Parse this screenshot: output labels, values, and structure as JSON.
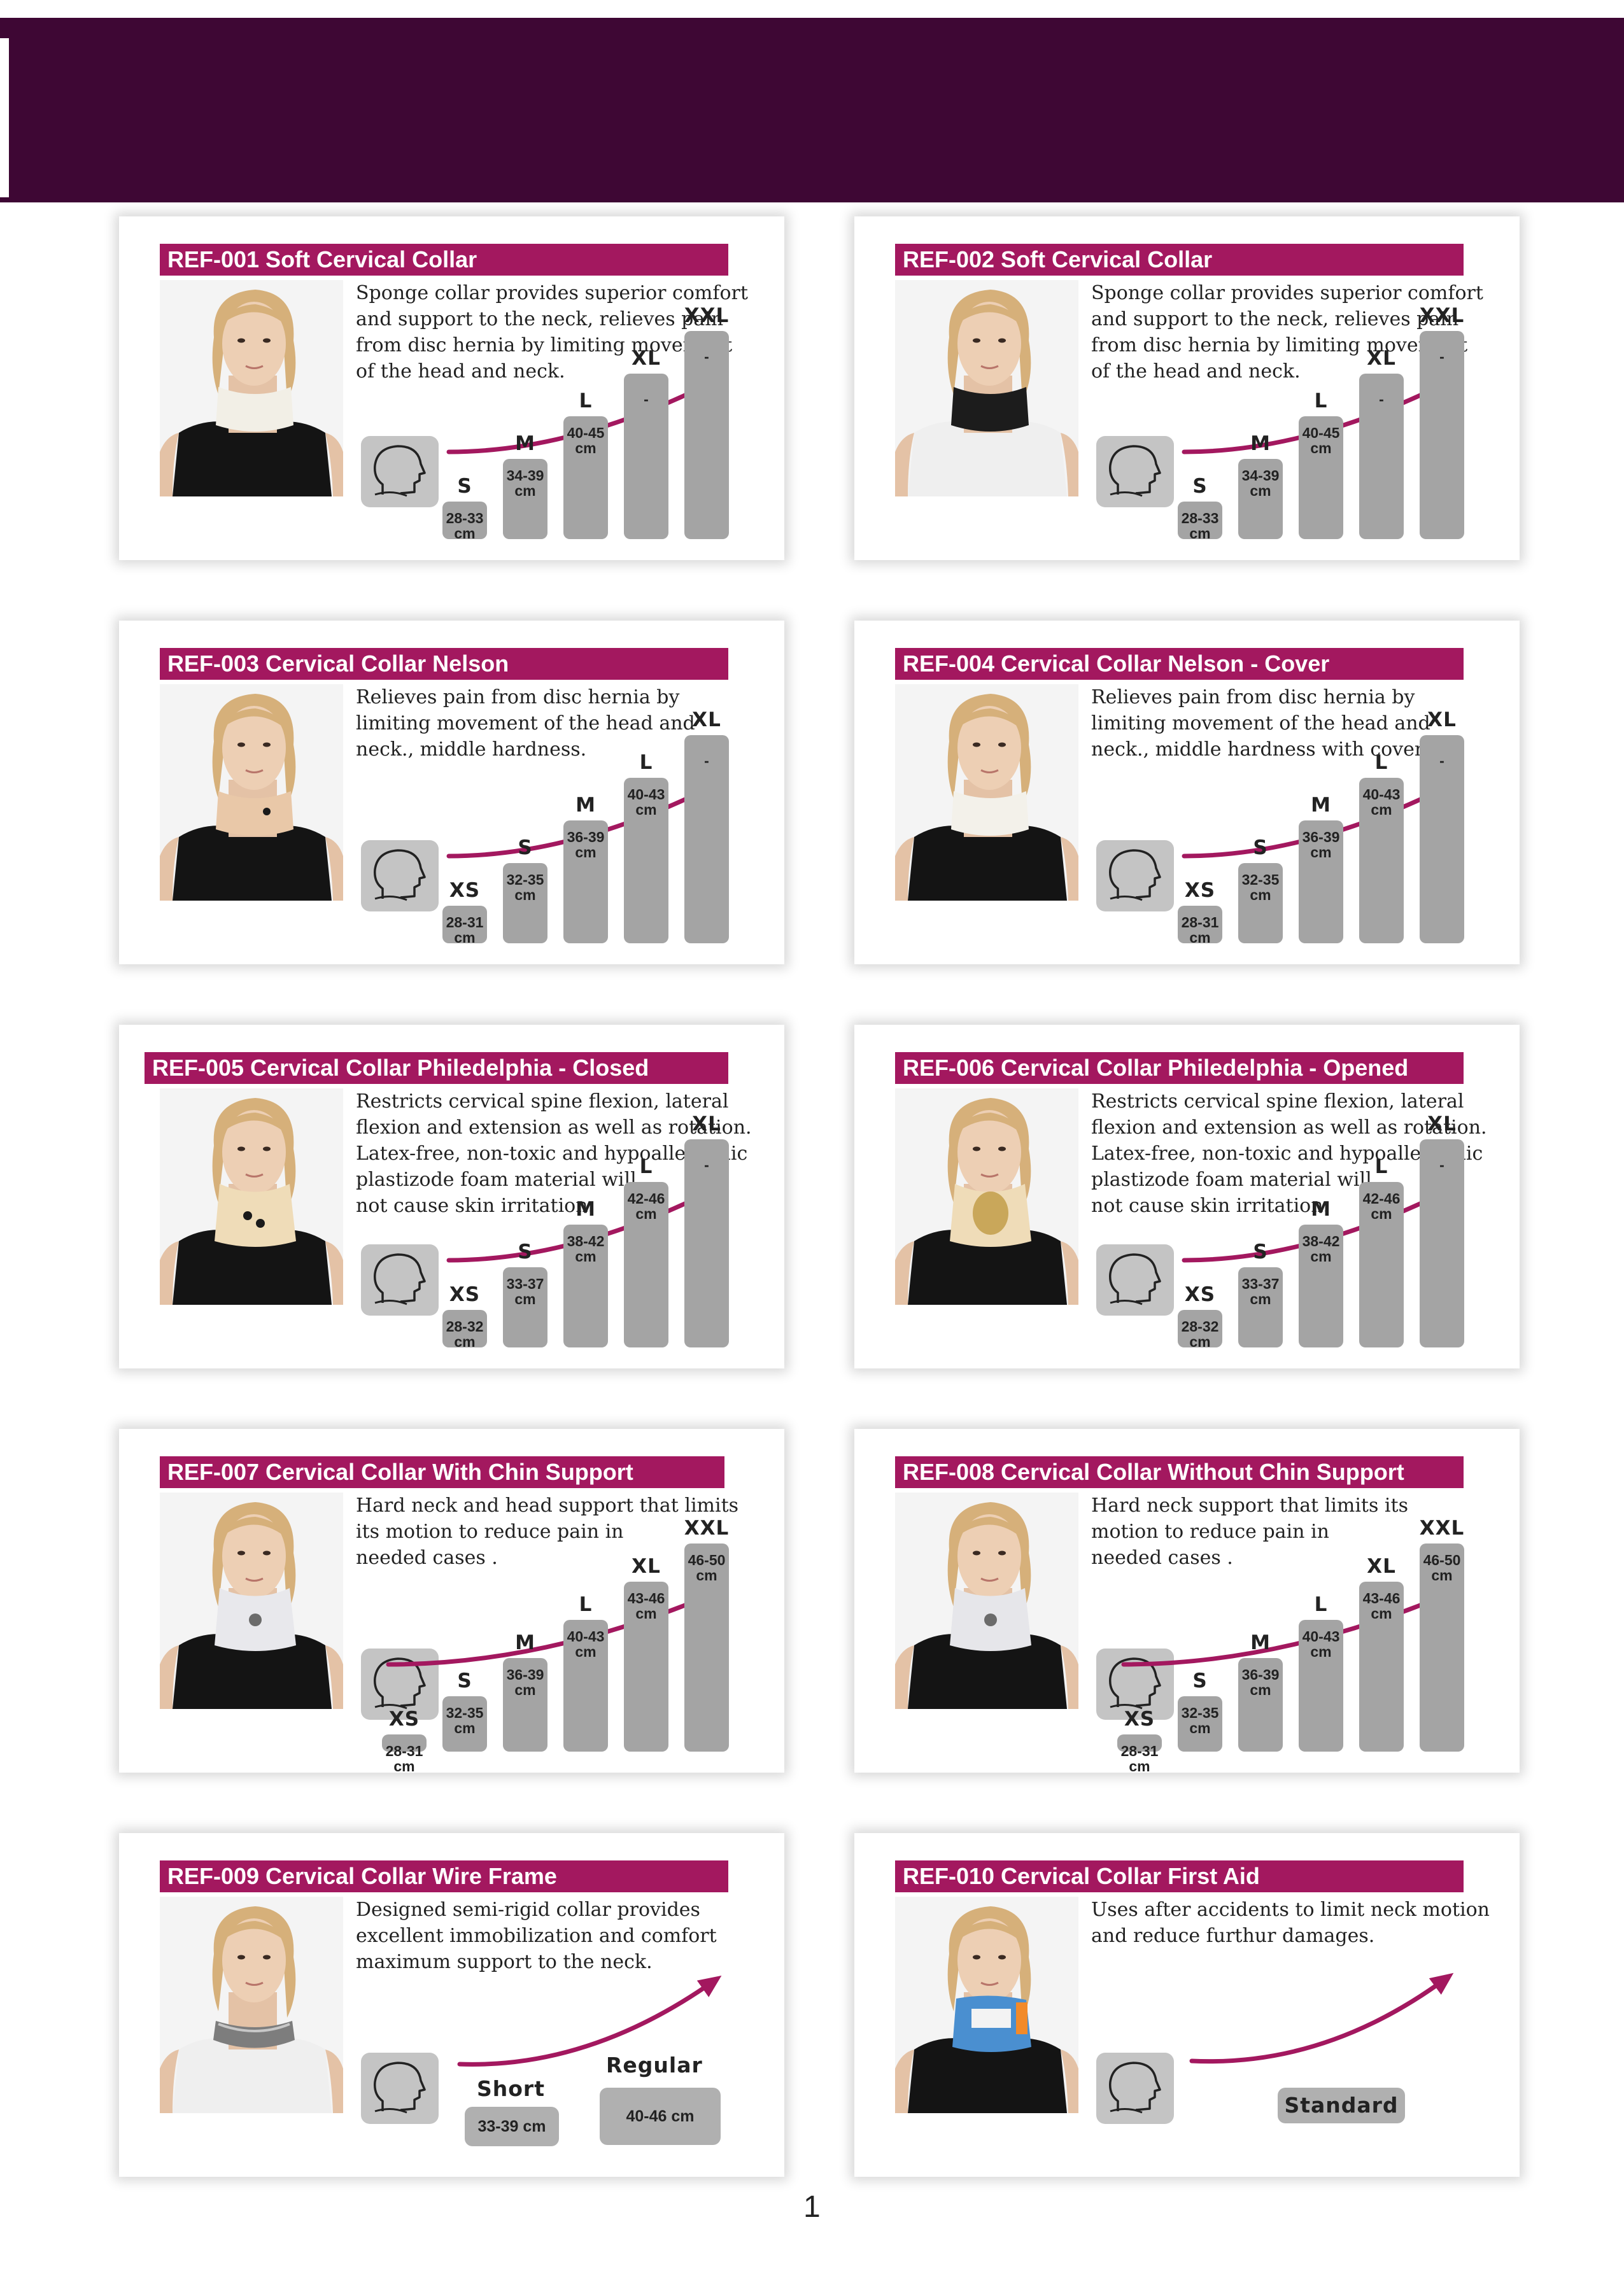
{
  "page": {
    "page_number": "1"
  },
  "colors": {
    "header": "#3e0734",
    "title_bar": "#a3185f",
    "arrow": "#a3185f",
    "size_box": "#a4a4a4"
  },
  "products": [
    {
      "title": "REF-001 Soft Cervical Collar",
      "description": "Sponge collar provides superior comfort\nand support to the neck, relieves pain\nfrom disc hernia by limiting movement\nof the head and neck.",
      "collar_color": "#f2efe6",
      "sizes": [
        {
          "label": "S",
          "value": "28-33\ncm"
        },
        {
          "label": "M",
          "value": "34-39\ncm"
        },
        {
          "label": "L",
          "value": "40-45\ncm"
        },
        {
          "label": "XL",
          "value": "-"
        },
        {
          "label": "XXL",
          "value": "-"
        }
      ]
    },
    {
      "title": "REF-002 Soft Cervical Collar",
      "description": "Sponge collar provides superior comfort\nand support to the neck, relieves pain\nfrom disc hernia by limiting movement\nof the head and neck.",
      "collar_color": "#1c1c1c",
      "sizes": [
        {
          "label": "S",
          "value": "28-33\ncm"
        },
        {
          "label": "M",
          "value": "34-39\ncm"
        },
        {
          "label": "L",
          "value": "40-45\ncm"
        },
        {
          "label": "XL",
          "value": "-"
        },
        {
          "label": "XXL",
          "value": "-"
        }
      ]
    },
    {
      "title": "REF-003 Cervical Collar Nelson",
      "description": "Relieves pain from disc hernia by\nlimiting movement of the head and\nneck., middle hardness.",
      "collar_color": "#e9c8a8",
      "sizes": [
        {
          "label": "XS",
          "value": "28-31\ncm"
        },
        {
          "label": "S",
          "value": "32-35\ncm"
        },
        {
          "label": "M",
          "value": "36-39\ncm"
        },
        {
          "label": "L",
          "value": "40-43\ncm"
        },
        {
          "label": "XL",
          "value": "-"
        }
      ]
    },
    {
      "title": "REF-004 Cervical Collar Nelson - Cover",
      "description": "Relieves pain from disc hernia by\nlimiting movement of the head and\nneck., middle hardness with cover.",
      "collar_color": "#f3f1ea",
      "sizes": [
        {
          "label": "XS",
          "value": "28-31\ncm"
        },
        {
          "label": "S",
          "value": "32-35\ncm"
        },
        {
          "label": "M",
          "value": "36-39\ncm"
        },
        {
          "label": "L",
          "value": "40-43\ncm"
        },
        {
          "label": "XL",
          "value": "-"
        }
      ]
    },
    {
      "title": "REF-005 Cervical Collar Philedelphia - Closed",
      "description": "Restricts cervical spine flexion, lateral\nflexion and extension as well as rotation.\nLatex-free, non-toxic and hypoallergenic\nplastizode foam material will\nnot cause skin irritation.",
      "collar_color": "#efdcb8",
      "sizes": [
        {
          "label": "XS",
          "value": "28-32\ncm"
        },
        {
          "label": "S",
          "value": "33-37\ncm"
        },
        {
          "label": "M",
          "value": "38-42\ncm"
        },
        {
          "label": "L",
          "value": "42-46\ncm"
        },
        {
          "label": "XL",
          "value": "-"
        }
      ]
    },
    {
      "title": "REF-006  Cervical Collar Philedelphia - Opened",
      "description": "Restricts cervical spine flexion, lateral\nflexion and extension as well as rotation.\nLatex-free, non-toxic and hypoallergenic\nplastizode foam material will\nnot cause skin irritation.",
      "collar_color": "#efdcb8",
      "sizes": [
        {
          "label": "XS",
          "value": "28-32\ncm"
        },
        {
          "label": "S",
          "value": "33-37\ncm"
        },
        {
          "label": "M",
          "value": "38-42\ncm"
        },
        {
          "label": "L",
          "value": "42-46\ncm"
        },
        {
          "label": "XL",
          "value": "-"
        }
      ]
    },
    {
      "title": "REF-007 Cervical Collar With Chin Support",
      "description": "Hard neck and head support that limits\nits motion to reduce pain in\nneeded cases .",
      "collar_color": "#e8e8ec",
      "sizes": [
        {
          "label": "XS",
          "value": "28-31\ncm"
        },
        {
          "label": "S",
          "value": "32-35\ncm"
        },
        {
          "label": "M",
          "value": "36-39\ncm"
        },
        {
          "label": "L",
          "value": "40-43\ncm"
        },
        {
          "label": "XL",
          "value": "43-46\ncm"
        },
        {
          "label": "XXL",
          "value": "46-50\ncm"
        }
      ]
    },
    {
      "title": "REF-008 Cervical Collar Without Chin Support",
      "description": "Hard neck  support that limits its\nmotion to reduce pain in\nneeded cases .",
      "collar_color": "#e6e6ea",
      "sizes": [
        {
          "label": "XS",
          "value": "28-31\ncm"
        },
        {
          "label": "S",
          "value": "32-35\ncm"
        },
        {
          "label": "M",
          "value": "36-39\ncm"
        },
        {
          "label": "L",
          "value": "40-43\ncm"
        },
        {
          "label": "XL",
          "value": "43-46\ncm"
        },
        {
          "label": "XXL",
          "value": "46-50\ncm"
        }
      ]
    },
    {
      "title": "REF-009 Cervical Collar Wire Frame",
      "description": "Designed semi-rigid collar provides\nexcellent immobilization and comfort\nmaximum support to the neck.",
      "collar_color": "#7d7d7d",
      "pills": [
        {
          "label": "Short",
          "value": "33-39 cm"
        },
        {
          "label": "Regular",
          "value": "40-46 cm"
        }
      ]
    },
    {
      "title": "REF-010 Cervical Collar First Aid",
      "description": "Uses after accidents to limit neck motion\nand reduce furthur damages.",
      "collar_color": "#4a8fd0",
      "pills": [
        {
          "label": "Standard",
          "value": ""
        }
      ]
    }
  ]
}
